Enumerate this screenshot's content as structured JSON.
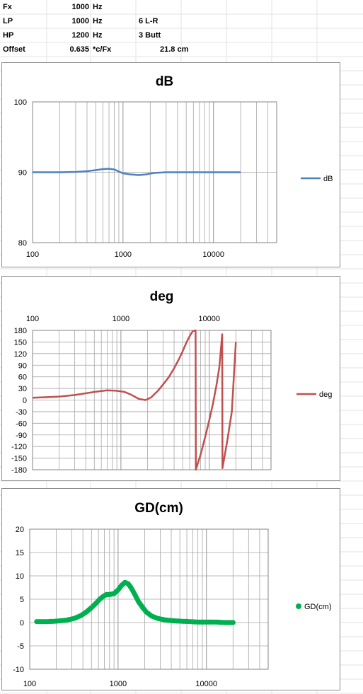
{
  "params": [
    {
      "label": "Fx",
      "value": "1000",
      "unit": "Hz",
      "extra": "",
      "extra2": ""
    },
    {
      "label": "LP",
      "value": "1000",
      "unit": "Hz",
      "extra": "6 L-R",
      "extra2": ""
    },
    {
      "label": "HP",
      "value": "1200",
      "unit": "Hz",
      "extra": "3 Butt",
      "extra2": ""
    },
    {
      "label": "Offset",
      "value": "0.635",
      "unit": "*c/Fx",
      "extra": "",
      "extra2": "21.8  cm"
    }
  ],
  "colors": {
    "db": "#4f81bd",
    "deg": "#c0504d",
    "gd": "#00b050",
    "grid": "#a6a6a6",
    "sheet_grid": "#e3e3e3",
    "border": "#8c8c8c"
  },
  "chart_data": [
    {
      "type": "line",
      "title": "dB",
      "xscale": "log",
      "xlim": [
        100,
        50000
      ],
      "ylim": [
        80,
        100
      ],
      "x_ticks": [
        "100",
        "1000",
        "10000"
      ],
      "y_ticks": [
        "100",
        "90",
        "80"
      ],
      "x_axis_position": "bottom",
      "legend": "right",
      "grid": true,
      "series": [
        {
          "name": "dB",
          "x": [
            100,
            200,
            300,
            400,
            500,
            600,
            700,
            800,
            900,
            1000,
            1200,
            1500,
            1800,
            2200,
            3000,
            5000,
            10000,
            20000
          ],
          "y": [
            90,
            90,
            90.05,
            90.15,
            90.3,
            90.45,
            90.5,
            90.4,
            90.1,
            89.85,
            89.7,
            89.6,
            89.7,
            89.9,
            90,
            90,
            90,
            90
          ]
        }
      ]
    },
    {
      "type": "line",
      "title": "deg",
      "xscale": "log",
      "xlim": [
        100,
        50000
      ],
      "ylim": [
        -180,
        180
      ],
      "x_ticks": [
        "100",
        "1000",
        "10000"
      ],
      "y_ticks": [
        "180",
        "150",
        "120",
        "90",
        "60",
        "30",
        "0",
        "-30",
        "-60",
        "-90",
        "-120",
        "-150",
        "-180"
      ],
      "x_axis_position": "top",
      "legend": "right",
      "grid": true,
      "series": [
        {
          "name": "deg",
          "x": [
            100,
            200,
            300,
            500,
            700,
            900,
            1100,
            1300,
            1600,
            1900,
            2200,
            2600,
            3000,
            3500,
            4000,
            4500,
            5000,
            5500,
            6000,
            6500,
            7000,
            7050,
            8000,
            9000,
            10000,
            11000,
            12000,
            13000,
            14000,
            14100,
            16000,
            18000,
            20000
          ],
          "y": [
            6,
            9,
            13,
            21,
            25,
            24,
            21,
            14,
            3,
            0,
            7,
            23,
            40,
            60,
            82,
            104,
            126,
            148,
            165,
            178,
            180,
            -180,
            -140,
            -95,
            -52,
            -10,
            35,
            85,
            170,
            -176,
            -105,
            -30,
            150
          ]
        }
      ]
    },
    {
      "type": "scatter",
      "title": "GD(cm)",
      "xscale": "log",
      "xlim": [
        100,
        50000
      ],
      "ylim": [
        -10,
        20
      ],
      "x_ticks": [
        "100",
        "1000",
        "10000"
      ],
      "y_ticks": [
        "20",
        "15",
        "10",
        "5",
        "0",
        "-5",
        "-10"
      ],
      "x_axis_position": "bottom",
      "legend": "right",
      "grid": true,
      "series": [
        {
          "name": "GD(cm)",
          "x": [
            120,
            160,
            200,
            260,
            320,
            380,
            440,
            500,
            560,
            620,
            680,
            740,
            800,
            900,
            1000,
            1100,
            1200,
            1300,
            1400,
            1550,
            1700,
            1900,
            2100,
            2400,
            2800,
            3300,
            4000,
            5000,
            6500,
            8000,
            10000,
            13000,
            16000,
            20000
          ],
          "y": [
            0.2,
            0.2,
            0.3,
            0.5,
            0.9,
            1.5,
            2.3,
            3.2,
            4.1,
            5.0,
            5.6,
            6.0,
            6.0,
            6.2,
            7.0,
            8.0,
            8.6,
            8.3,
            7.5,
            6.0,
            4.5,
            3.2,
            2.2,
            1.4,
            0.9,
            0.6,
            0.4,
            0.3,
            0.2,
            0.1,
            0.1,
            0.1,
            0.0,
            0.0
          ]
        }
      ]
    }
  ]
}
